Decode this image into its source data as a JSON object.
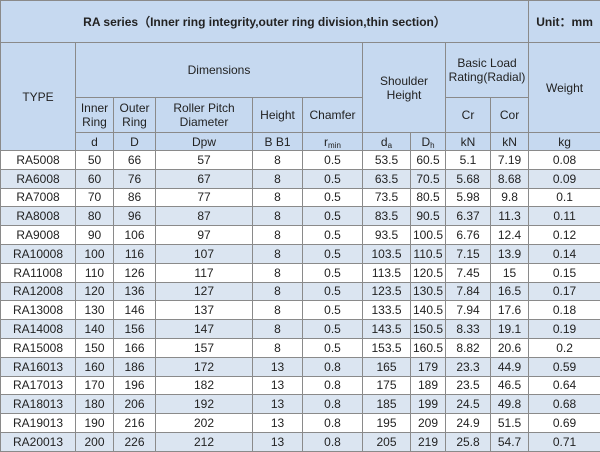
{
  "header": {
    "title": "RA series（Inner ring integrity,outer ring division,thin section）",
    "unit": "Unit：mm"
  },
  "head": {
    "type": "TYPE",
    "dimensions": "Dimensions",
    "shoulder_height": "Shoulder Height",
    "basic_load": "Basic Load Rating(Radial)",
    "weight": "Weight",
    "inner_ring": "Inner Ring",
    "outer_ring": "Outer Ring",
    "roller_pitch": "Roller Pitch Diameter",
    "height": "Height",
    "chamfer": "Chamfer",
    "cr": "Cr",
    "cor": "Cor"
  },
  "units": [
    {
      "main": "d"
    },
    {
      "main": "D"
    },
    {
      "main": "Dpw"
    },
    {
      "main": "B  B1"
    },
    {
      "main": "r",
      "sub": "min"
    },
    {
      "main": "d",
      "sub": "a"
    },
    {
      "main": "D",
      "sub": "h"
    },
    {
      "main": "kN"
    },
    {
      "main": "kN"
    },
    {
      "main": "kg"
    }
  ],
  "rows": [
    [
      "RA5008",
      "50",
      "66",
      "57",
      "8",
      "0.5",
      "53.5",
      "60.5",
      "5.1",
      "7.19",
      "0.08"
    ],
    [
      "RA6008",
      "60",
      "76",
      "67",
      "8",
      "0.5",
      "63.5",
      "70.5",
      "5.68",
      "8.68",
      "0.09"
    ],
    [
      "RA7008",
      "70",
      "86",
      "77",
      "8",
      "0.5",
      "73.5",
      "80.5",
      "5.98",
      "9.8",
      "0.1"
    ],
    [
      "RA8008",
      "80",
      "96",
      "87",
      "8",
      "0.5",
      "83.5",
      "90.5",
      "6.37",
      "11.3",
      "0.11"
    ],
    [
      "RA9008",
      "90",
      "106",
      "97",
      "8",
      "0.5",
      "93.5",
      "100.5",
      "6.76",
      "12.4",
      "0.12"
    ],
    [
      "RA10008",
      "100",
      "116",
      "107",
      "8",
      "0.5",
      "103.5",
      "110.5",
      "7.15",
      "13.9",
      "0.14"
    ],
    [
      "RA11008",
      "110",
      "126",
      "117",
      "8",
      "0.5",
      "113.5",
      "120.5",
      "7.45",
      "15",
      "0.15"
    ],
    [
      "RA12008",
      "120",
      "136",
      "127",
      "8",
      "0.5",
      "123.5",
      "130.5",
      "7.84",
      "16.5",
      "0.17"
    ],
    [
      "RA13008",
      "130",
      "146",
      "137",
      "8",
      "0.5",
      "133.5",
      "140.5",
      "7.94",
      "17.6",
      "0.18"
    ],
    [
      "RA14008",
      "140",
      "156",
      "147",
      "8",
      "0.5",
      "143.5",
      "150.5",
      "8.33",
      "19.1",
      "0.19"
    ],
    [
      "RA15008",
      "150",
      "166",
      "157",
      "8",
      "0.5",
      "153.5",
      "160.5",
      "8.82",
      "20.6",
      "0.2"
    ],
    [
      "RA16013",
      "160",
      "186",
      "172",
      "13",
      "0.8",
      "165",
      "179",
      "23.3",
      "44.9",
      "0.59"
    ],
    [
      "RA17013",
      "170",
      "196",
      "182",
      "13",
      "0.8",
      "175",
      "189",
      "23.5",
      "46.5",
      "0.64"
    ],
    [
      "RA18013",
      "180",
      "206",
      "192",
      "13",
      "0.8",
      "185",
      "199",
      "24.5",
      "49.8",
      "0.68"
    ],
    [
      "RA19013",
      "190",
      "216",
      "202",
      "13",
      "0.8",
      "195",
      "209",
      "24.9",
      "51.5",
      "0.69"
    ],
    [
      "RA20013",
      "200",
      "226",
      "212",
      "13",
      "0.8",
      "205",
      "219",
      "25.8",
      "54.7",
      "0.71"
    ]
  ]
}
